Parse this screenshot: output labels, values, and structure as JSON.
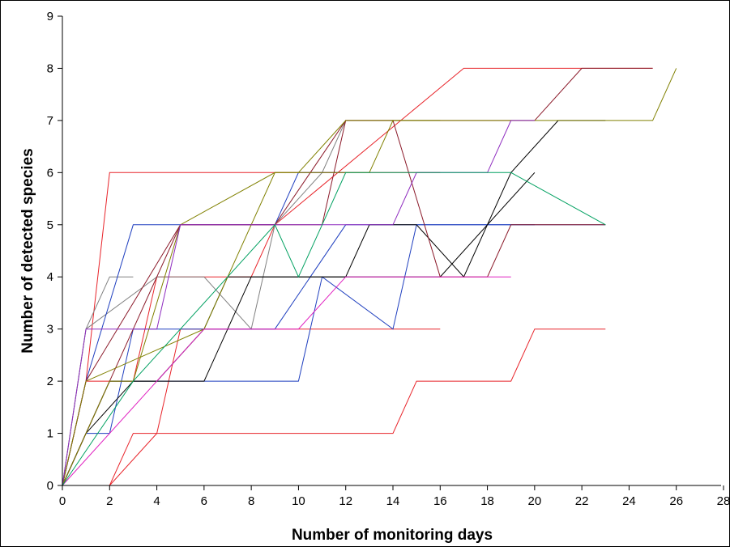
{
  "chart_data": {
    "type": "line",
    "title": "",
    "xlabel": "Number of monitoring days",
    "ylabel": "Number of detected species",
    "xlim": [
      0,
      28
    ],
    "ylim": [
      0,
      9
    ],
    "x_ticks": [
      "0",
      "2",
      "4",
      "6",
      "8",
      "10",
      "12",
      "14",
      "16",
      "18",
      "20",
      "22",
      "24",
      "26",
      "28"
    ],
    "y_ticks": [
      "0",
      "1",
      "2",
      "3",
      "4",
      "5",
      "6",
      "7",
      "8",
      "9"
    ],
    "grid": false,
    "legend": "none",
    "series": [
      {
        "color": "#e8242a",
        "x": [
          0,
          1,
          2,
          16
        ],
        "y": [
          0,
          2,
          6,
          6
        ]
      },
      {
        "color": "#e8242a",
        "x": [
          0,
          2,
          4,
          5,
          8,
          9,
          16
        ],
        "y": [
          0,
          0,
          1,
          3,
          3,
          3,
          3
        ]
      },
      {
        "color": "#e8242a",
        "x": [
          0,
          2,
          3,
          14,
          15,
          19,
          20,
          23
        ],
        "y": [
          0,
          0,
          1,
          1,
          2,
          2,
          3,
          3
        ]
      },
      {
        "color": "#e8242a",
        "x": [
          0,
          1,
          3,
          4,
          8,
          9,
          17,
          22,
          25
        ],
        "y": [
          0,
          2,
          2,
          4,
          4,
          5,
          8,
          8,
          8
        ]
      },
      {
        "color": "#808080",
        "x": [
          0,
          1,
          4,
          6,
          8,
          9,
          11,
          12,
          16
        ],
        "y": [
          0,
          3,
          4,
          4,
          3,
          5,
          6,
          7,
          7
        ]
      },
      {
        "color": "#808080",
        "x": [
          0,
          1,
          2,
          3
        ],
        "y": [
          0,
          3,
          4,
          4
        ]
      },
      {
        "color": "#1f3fbf",
        "x": [
          0,
          1,
          3,
          9,
          10,
          12
        ],
        "y": [
          0,
          2,
          5,
          5,
          6,
          6
        ]
      },
      {
        "color": "#1f3fbf",
        "x": [
          0,
          1,
          2,
          3,
          5,
          9,
          12,
          14,
          15,
          23
        ],
        "y": [
          0,
          1,
          1,
          3,
          3,
          3,
          5,
          5,
          5,
          5
        ]
      },
      {
        "color": "#1f3fbf",
        "x": [
          0,
          2,
          4,
          10,
          11,
          14,
          15,
          20
        ],
        "y": [
          0,
          2,
          2,
          2,
          4,
          3,
          5,
          5
        ]
      },
      {
        "color": "#000000",
        "x": [
          0,
          1,
          3,
          6,
          8,
          12,
          13,
          15,
          17,
          19,
          21,
          23
        ],
        "y": [
          0,
          1,
          2,
          2,
          4,
          4,
          5,
          5,
          4,
          6,
          7,
          7
        ]
      },
      {
        "color": "#000000",
        "x": [
          0,
          2,
          4,
          6,
          7,
          8,
          11,
          14,
          16,
          20
        ],
        "y": [
          0,
          2,
          2,
          3,
          4,
          4,
          4,
          4,
          4,
          6
        ]
      },
      {
        "color": "#8b1a2a",
        "x": [
          0,
          1,
          5,
          11,
          12,
          14,
          16,
          18,
          19,
          23
        ],
        "y": [
          0,
          2,
          5,
          5,
          7,
          7,
          4,
          4,
          5,
          5
        ]
      },
      {
        "color": "#8b1a2a",
        "x": [
          0,
          5,
          9,
          12,
          20,
          22,
          25
        ],
        "y": [
          0,
          5,
          5,
          7,
          7,
          8,
          8
        ]
      },
      {
        "color": "#808000",
        "x": [
          0,
          2,
          3,
          5,
          9,
          10,
          13,
          14,
          17,
          25,
          26
        ],
        "y": [
          0,
          2,
          2,
          5,
          6,
          6,
          6,
          7,
          7,
          7,
          8
        ]
      },
      {
        "color": "#808000",
        "x": [
          0,
          1,
          6,
          8,
          9,
          10,
          12,
          16
        ],
        "y": [
          0,
          2,
          3,
          5,
          6,
          6,
          7,
          7
        ]
      },
      {
        "color": "#8e2bbf",
        "x": [
          0,
          1,
          3,
          4,
          5,
          9,
          14,
          15,
          18,
          19,
          20
        ],
        "y": [
          0,
          3,
          3,
          3,
          5,
          5,
          5,
          6,
          6,
          7,
          7
        ]
      },
      {
        "color": "#e020c0",
        "x": [
          0,
          4,
          6,
          10,
          12,
          13,
          19
        ],
        "y": [
          0,
          2,
          3,
          3,
          4,
          4,
          4
        ]
      },
      {
        "color": "#00a060",
        "x": [
          0,
          3,
          5,
          7,
          9,
          10,
          11,
          12,
          19,
          23
        ],
        "y": [
          0,
          2,
          3,
          4,
          5,
          4,
          5,
          6,
          6,
          5
        ]
      }
    ]
  }
}
